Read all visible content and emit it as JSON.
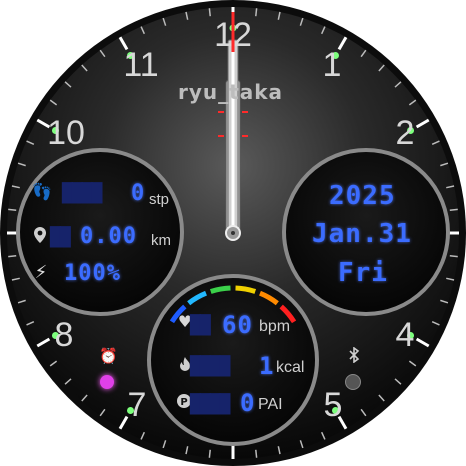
{
  "brand": "ryu_taka",
  "hour_numerals": [
    "12",
    "1",
    "2",
    "4",
    "5",
    "7",
    "8",
    "10",
    "11"
  ],
  "activity": {
    "steps": {
      "value": "0",
      "unit": "stp",
      "icon": "footsteps-icon"
    },
    "distance": {
      "value": "0.00",
      "unit": "km",
      "icon": "location-pin-icon"
    },
    "battery": {
      "value": "100%",
      "icon": "lightning-icon"
    }
  },
  "date": {
    "year": "2025",
    "month_day": "Jan.31",
    "weekday": "Fri"
  },
  "health": {
    "heart_rate": {
      "value": "60",
      "unit": "bpm",
      "icon": "heart-icon"
    },
    "calories": {
      "value": "1",
      "unit": "kcal",
      "icon": "flame-icon"
    },
    "pai": {
      "value": "0",
      "unit": "PAI",
      "icon": "pai-icon"
    }
  },
  "status": {
    "alarm_icon": "alarm-clock-icon",
    "bluetooth_icon": "bluetooth-icon"
  },
  "colors": {
    "lcd_lit": "#3b6cff",
    "lcd_dim": "#16236a",
    "minute_marker": "#7dff7d",
    "second_hand": "#ff2a2a",
    "alarm_dot": "#e040e8",
    "bezel": "#2a2a2a",
    "hr_zones": [
      "#1e5cff",
      "#22b8ff",
      "#3bd14a",
      "#f0d000",
      "#ff8a00",
      "#ff2020"
    ]
  },
  "time": {
    "hour": 12,
    "minute": 0,
    "second": 0
  }
}
